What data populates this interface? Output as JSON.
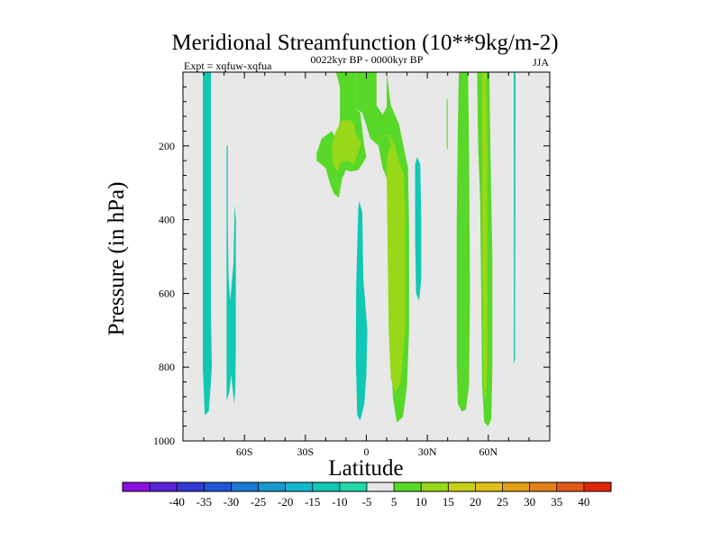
{
  "chart_data": {
    "type": "contour",
    "title": "Meridional Streamfunction (10**9kg/m-2)",
    "subtitle": "0022kyr BP - 0000kyr BP",
    "left_label": "Expt = xqfuw-xqfua",
    "right_label": "JJA",
    "xlabel": "Latitude",
    "ylabel": "Pressure (in hPa)",
    "xlim": [
      -90,
      90
    ],
    "ylim": [
      1000,
      0
    ],
    "x_ticks": [
      {
        "value": -60,
        "label": "60S"
      },
      {
        "value": -30,
        "label": "30S"
      },
      {
        "value": 0,
        "label": "0"
      },
      {
        "value": 30,
        "label": "30N"
      },
      {
        "value": 60,
        "label": "60N"
      }
    ],
    "y_ticks": [
      {
        "value": 200,
        "label": "200"
      },
      {
        "value": 400,
        "label": "400"
      },
      {
        "value": 600,
        "label": "600"
      },
      {
        "value": 800,
        "label": "800"
      },
      {
        "value": 1000,
        "label": "1000"
      }
    ],
    "background_color": "#e8e8e8",
    "colorbar": {
      "labels": [
        "-40",
        "-35",
        "-30",
        "-25",
        "-20",
        "-15",
        "-10",
        "-5",
        "5",
        "10",
        "15",
        "20",
        "25",
        "30",
        "35",
        "40"
      ],
      "colors": [
        "#8a10e0",
        "#5a22d8",
        "#3338d0",
        "#2255d8",
        "#1a78d8",
        "#1898d0",
        "#12b8d0",
        "#10c8b4",
        "#20d8a8",
        "#e6e6e6",
        "#58d828",
        "#98d818",
        "#c8d018",
        "#e0c018",
        "#e4a018",
        "#e48018",
        "#e45818",
        "#e02808"
      ]
    },
    "regions": [
      {
        "name": "band-75S",
        "level": -10,
        "color": "#10c8b4",
        "points": [
          [
            -80.5,
            0
          ],
          [
            -76.5,
            0
          ],
          [
            -76.5,
            200
          ],
          [
            -76.5,
            650
          ],
          [
            -76,
            800
          ],
          [
            -77.5,
            920
          ],
          [
            -79.5,
            930
          ],
          [
            -80.5,
            800
          ],
          [
            -80.5,
            600
          ]
        ]
      },
      {
        "name": "band-65S",
        "level": -10,
        "color": "#10c8b4",
        "points": [
          [
            -68.2,
            200
          ],
          [
            -68.8,
            200
          ],
          [
            -68.8,
            600
          ],
          [
            -68.8,
            890
          ],
          [
            -67.5,
            870
          ],
          [
            -66.5,
            820
          ],
          [
            -65,
            900
          ],
          [
            -64.5,
            860
          ],
          [
            -64.2,
            750
          ],
          [
            -64.2,
            400
          ],
          [
            -64.8,
            360
          ],
          [
            -65.4,
            520
          ],
          [
            -67,
            620
          ],
          [
            -67.8,
            560
          ],
          [
            -68.2,
            400
          ]
        ]
      },
      {
        "name": "band-10N",
        "level": -10,
        "color": "#10c8b4",
        "points": [
          [
            -4,
            370
          ],
          [
            -5,
            580
          ],
          [
            -5.2,
            780
          ],
          [
            -4.5,
            930
          ],
          [
            -3,
            945
          ],
          [
            -1,
            900
          ],
          [
            0,
            820
          ],
          [
            0.5,
            700
          ],
          [
            -1.5,
            560
          ],
          [
            -2,
            380
          ],
          [
            -3.5,
            350
          ]
        ]
      },
      {
        "name": "patch-28N",
        "level": -10,
        "color": "#10c8b4",
        "points": [
          [
            24,
            250
          ],
          [
            25,
            230
          ],
          [
            26.5,
            250
          ],
          [
            27,
            400
          ],
          [
            27,
            560
          ],
          [
            26,
            620
          ],
          [
            24.5,
            600
          ],
          [
            24,
            450
          ]
        ]
      },
      {
        "name": "sliver-74N",
        "level": -10,
        "color": "#10c8b4",
        "points": [
          [
            72.5,
            0
          ],
          [
            73.4,
            0
          ],
          [
            73.3,
            400
          ],
          [
            73.1,
            780
          ],
          [
            72.5,
            790
          ],
          [
            72.6,
            400
          ]
        ]
      },
      {
        "name": "green-tropics",
        "level": 5,
        "color": "#58d828",
        "points": [
          [
            -15,
            0
          ],
          [
            -5,
            0
          ],
          [
            -5,
            100
          ],
          [
            -2,
            110
          ],
          [
            2,
            180
          ],
          [
            6,
            200
          ],
          [
            8,
            260
          ],
          [
            11,
            300
          ],
          [
            12,
            420
          ],
          [
            12,
            700
          ],
          [
            13,
            880
          ],
          [
            15,
            950
          ],
          [
            18,
            935
          ],
          [
            20,
            850
          ],
          [
            21,
            700
          ],
          [
            21,
            420
          ],
          [
            20.5,
            260
          ],
          [
            19,
            220
          ],
          [
            16,
            140
          ],
          [
            12,
            90
          ],
          [
            10,
            0
          ],
          [
            10,
            95
          ],
          [
            8,
            115
          ],
          [
            5,
            90
          ],
          [
            5,
            0
          ],
          [
            -5,
            0
          ]
        ]
      },
      {
        "name": "green-upper-left",
        "level": 5,
        "color": "#58d828",
        "points": [
          [
            -20,
            260
          ],
          [
            -24.5,
            240
          ],
          [
            -24.5,
            220
          ],
          [
            -22,
            180
          ],
          [
            -17,
            160
          ],
          [
            -14,
            190
          ],
          [
            -13,
            120
          ],
          [
            -13,
            40
          ],
          [
            -15,
            0
          ],
          [
            -5,
            0
          ],
          [
            -5,
            100
          ],
          [
            -3,
            110
          ],
          [
            -1,
            200
          ],
          [
            0,
            230
          ],
          [
            -2,
            250
          ],
          [
            -4,
            265
          ],
          [
            -8,
            270
          ],
          [
            -10,
            265
          ],
          [
            -12,
            290
          ],
          [
            -13.5,
            340
          ],
          [
            -16,
            330
          ],
          [
            -18,
            300
          ]
        ]
      },
      {
        "name": "green-band-48N",
        "level": 5,
        "color": "#58d828",
        "points": [
          [
            45.5,
            0
          ],
          [
            50,
            0
          ],
          [
            50.5,
            200
          ],
          [
            51,
            600
          ],
          [
            50.5,
            850
          ],
          [
            49,
            915
          ],
          [
            47,
            920
          ],
          [
            45,
            900
          ],
          [
            44.5,
            800
          ],
          [
            44.5,
            400
          ],
          [
            45,
            150
          ]
        ]
      },
      {
        "name": "green-band-60N",
        "level": 5,
        "color": "#58d828",
        "points": [
          [
            54.5,
            0
          ],
          [
            60.5,
            0
          ],
          [
            61,
            200
          ],
          [
            62,
            500
          ],
          [
            62,
            800
          ],
          [
            61.5,
            940
          ],
          [
            60,
            960
          ],
          [
            58,
            950
          ],
          [
            57,
            850
          ],
          [
            56.5,
            600
          ],
          [
            56,
            350
          ],
          [
            55,
            200
          ]
        ]
      },
      {
        "name": "lime-upper-left",
        "level": 10,
        "color": "#98d818",
        "points": [
          [
            -16.5,
            250
          ],
          [
            -17,
            200
          ],
          [
            -15,
            160
          ],
          [
            -12,
            130
          ],
          [
            -8,
            130
          ],
          [
            -6,
            140
          ],
          [
            -5,
            170
          ],
          [
            -2.5,
            195
          ],
          [
            -4,
            215
          ],
          [
            -6,
            250
          ],
          [
            -9,
            240
          ],
          [
            -13,
            245
          ],
          [
            -14,
            270
          ]
        ]
      },
      {
        "name": "lime-column-15N",
        "level": 10,
        "color": "#98d818",
        "points": [
          [
            6,
            180
          ],
          [
            9,
            170
          ],
          [
            11,
            175
          ],
          [
            12,
            200
          ],
          [
            10,
            230
          ],
          [
            10,
            290
          ],
          [
            10.5,
            500
          ],
          [
            11,
            700
          ],
          [
            12,
            830
          ],
          [
            14,
            870
          ],
          [
            17,
            840
          ],
          [
            19,
            700
          ],
          [
            19,
            400
          ],
          [
            18.5,
            280
          ],
          [
            16,
            240
          ],
          [
            14,
            200
          ],
          [
            11,
            170
          ]
        ]
      },
      {
        "name": "lime-core-60N",
        "level": 10,
        "color": "#98d818",
        "points": [
          [
            57,
            0
          ],
          [
            59,
            0
          ],
          [
            59.5,
            200
          ],
          [
            59.5,
            500
          ],
          [
            59.5,
            800
          ],
          [
            58.5,
            900
          ],
          [
            57.5,
            840
          ],
          [
            57.2,
            600
          ],
          [
            57,
            400
          ],
          [
            57,
            100
          ]
        ]
      },
      {
        "name": "streak-35N",
        "level": 5,
        "color": "#58d828",
        "points": [
          [
            39.5,
            70
          ],
          [
            40,
            75
          ],
          [
            40,
            210
          ],
          [
            39.5,
            205
          ]
        ]
      }
    ]
  }
}
